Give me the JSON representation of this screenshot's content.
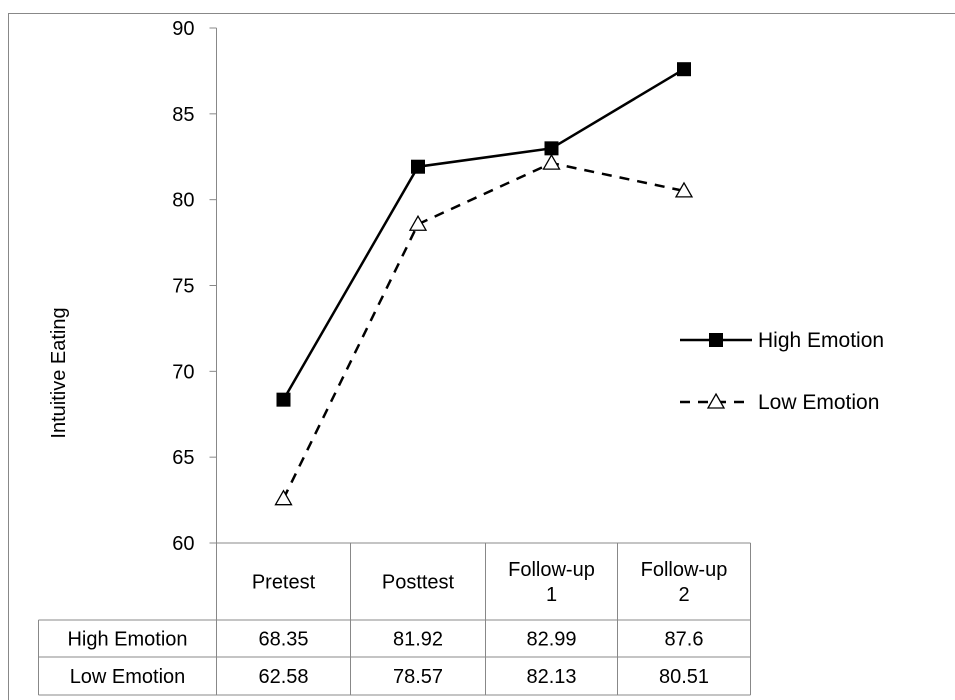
{
  "chart_data": {
    "type": "line",
    "ylabel": "Intuitive Eating",
    "ylim": [
      60,
      90
    ],
    "yticks": [
      60,
      65,
      70,
      75,
      80,
      85,
      90
    ],
    "categories": [
      [
        "Pretest"
      ],
      [
        "Posttest"
      ],
      [
        "Follow-up",
        "1"
      ],
      [
        "Follow-up",
        "2"
      ]
    ],
    "series": [
      {
        "name": "High Emotion",
        "values": [
          68.35,
          81.92,
          82.99,
          87.6
        ],
        "marker": "filled-square",
        "line": "solid"
      },
      {
        "name": "Low Emotion",
        "values": [
          62.58,
          78.57,
          82.13,
          80.51
        ],
        "marker": "open-triangle",
        "line": "dashed"
      }
    ],
    "table": {
      "row_labels": [
        "High Emotion",
        "Low Emotion"
      ],
      "rows": [
        [
          "68.35",
          "81.92",
          "82.99",
          "87.6"
        ],
        [
          "62.58",
          "78.57",
          "82.13",
          "80.51"
        ]
      ]
    },
    "legend": {
      "placement": "right",
      "items": [
        "High Emotion",
        "Low Emotion"
      ]
    },
    "grid": false,
    "colors": {
      "line": "#000000",
      "border": "#888888",
      "background": "#ffffff"
    }
  }
}
